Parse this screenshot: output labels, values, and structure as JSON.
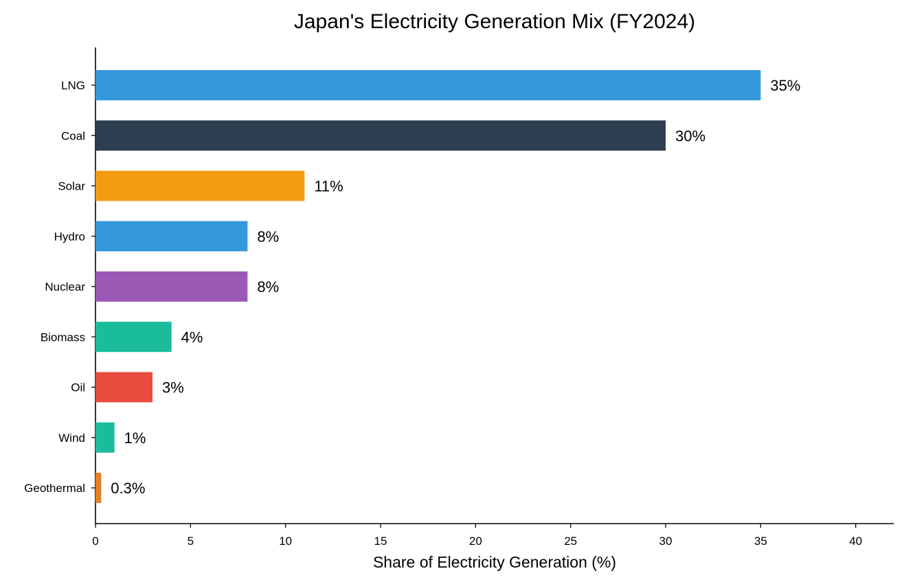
{
  "chart_data": {
    "type": "bar",
    "orientation": "horizontal",
    "title": "Japan's Electricity Generation Mix (FY2024)",
    "xlabel": "Share of Electricity Generation (%)",
    "ylabel": "",
    "xlim": [
      0,
      42
    ],
    "xticks": [
      "0",
      "5",
      "10",
      "15",
      "20",
      "25",
      "30",
      "35",
      "40"
    ],
    "xtick_values": [
      0,
      5,
      10,
      15,
      20,
      25,
      30,
      35,
      40
    ],
    "grid": false,
    "legend": "none",
    "categories": [
      "LNG",
      "Coal",
      "Solar",
      "Hydro",
      "Nuclear",
      "Biomass",
      "Oil",
      "Wind",
      "Geothermal"
    ],
    "values": [
      35,
      30,
      11,
      8,
      8,
      4,
      3,
      1,
      0.3
    ],
    "data_labels": [
      "35%",
      "30%",
      "11%",
      "8%",
      "8%",
      "4%",
      "3%",
      "1%",
      "0.3%"
    ],
    "colors": [
      "#3498db",
      "#2c3e50",
      "#f39c12",
      "#3498db",
      "#9b59b6",
      "#1abc9c",
      "#e74c3c",
      "#1abc9c",
      "#e67e22"
    ]
  }
}
